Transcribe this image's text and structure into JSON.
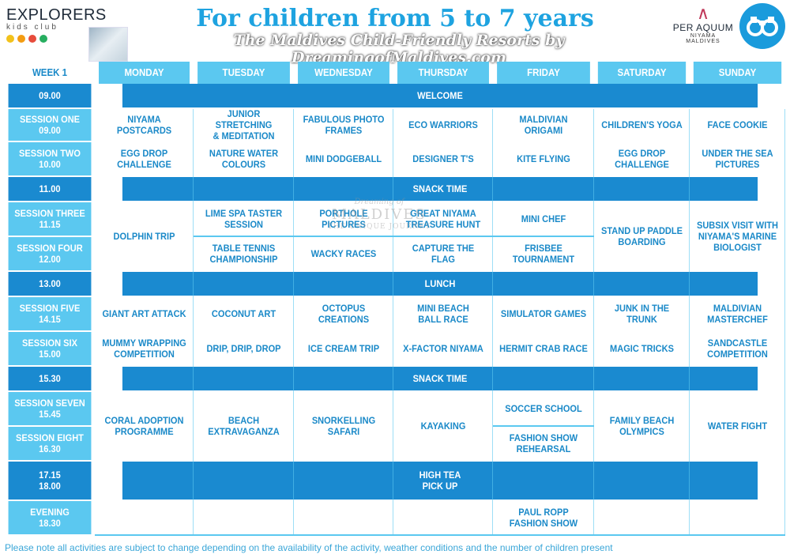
{
  "header": {
    "club_logo_title": "EXPLORERS",
    "club_logo_sub": "kids club",
    "title": "For children from 5 to 7 years",
    "subtitle": "The Maldives Child-Friendly Resorts by DreamingofMaldives.com",
    "brand_name": "PER AQUUM",
    "brand_sub": "NIYAMA",
    "brand_sub2": "MALDIVES"
  },
  "watermark": {
    "line1": "Dreaming of",
    "line2": "MALDIVES",
    "line3": "THE UNIQUE JOURNEY"
  },
  "colors": {
    "header_light": "#5bc8f0",
    "band_dark": "#1a8ad0",
    "activity_text": "#1a89c8",
    "title": "#1ea3e0"
  },
  "schedule": {
    "week_label": "WEEK 1",
    "days": [
      "MONDAY",
      "TUESDAY",
      "WEDNESDAY",
      "THURSDAY",
      "FRIDAY",
      "SATURDAY",
      "SUNDAY"
    ],
    "welcome": {
      "time": "09.00",
      "label": "WELCOME"
    },
    "snack1": {
      "time": "11.00",
      "label": "SNACK TIME"
    },
    "lunch": {
      "time": "13.00",
      "label": "LUNCH"
    },
    "snack2": {
      "time": "15.30",
      "label": "SNACK TIME"
    },
    "hightea": {
      "time": "17.15",
      "label": "HIGH TEA"
    },
    "pickup": {
      "time": "18.00",
      "label": "PICK UP"
    },
    "sessions": {
      "s1": "SESSION ONE\n09.00",
      "s2": "SESSION TWO\n10.00",
      "s3": "SESSION THREE\n11.15",
      "s4": "SESSION FOUR\n12.00",
      "s5": "SESSION FIVE\n14.15",
      "s6": "SESSION SIX\n15.00",
      "s7": "SESSION SEVEN\n15.45",
      "s8": "SESSION EIGHT\n16.30",
      "ev": "EVENING\n18.30"
    },
    "s1": [
      "NIYAMA POSTCARDS",
      "JUNIOR STRETCHING\n& MEDITATION",
      "FABULOUS PHOTO\nFRAMES",
      "ECO WARRIORS",
      "MALDIVIAN ORIGAMI",
      "CHILDREN'S YOGA",
      "FACE COOKIE"
    ],
    "s2": [
      "EGG DROP CHALLENGE",
      "NATURE WATER\nCOLOURS",
      "MINI DODGEBALL",
      "DESIGNER T'S",
      "KITE FLYING",
      "EGG DROP CHALLENGE",
      "UNDER THE SEA\nPICTURES"
    ],
    "b34": {
      "mon": "DOLPHIN TRIP",
      "tue3": "LIME SPA TASTER\nSESSION",
      "tue4": "TABLE TENNIS\nCHAMPIONSHIP",
      "wed3": "PORTHOLE PICTURES",
      "wed4": "WACKY RACES",
      "thu3": "GREAT NIYAMA\nTREASURE HUNT",
      "thu4": "CAPTURE THE FLAG",
      "fri3": "MINI CHEF",
      "fri4": "FRISBEE TOURNAMENT",
      "sat": "STAND UP PADDLE\nBOARDING",
      "sun": "SUBSIX VISIT WITH\nNIYAMA'S MARINE\nBIOLOGIST"
    },
    "s5": [
      "GIANT ART ATTACK",
      "COCONUT ART",
      "OCTOPUS CREATIONS",
      "MINI BEACH\nBALL RACE",
      "SIMULATOR GAMES",
      "JUNK IN THE TRUNK",
      "MALDIVIAN\nMASTERCHEF"
    ],
    "s6": [
      "MUMMY WRAPPING\nCOMPETITION",
      "DRIP, DRIP, DROP",
      "ICE CREAM TRIP",
      "X-FACTOR NIYAMA",
      "HERMIT CRAB RACE",
      "MAGIC TRICKS",
      "SANDCASTLE\nCOMPETITION"
    ],
    "b78": {
      "mon": "CORAL ADOPTION\nPROGRAMME",
      "tue": "BEACH\nEXTRAVAGANZA",
      "wed": "SNORKELLING SAFARI",
      "thu": "KAYAKING",
      "fri7": "SOCCER SCHOOL",
      "fri8": "FASHION SHOW\nREHEARSAL",
      "sat": "FAMILY BEACH\nOLYMPICS",
      "sun": "WATER FIGHT"
    },
    "evening_fri": "PAUL ROPP\nFASHION SHOW"
  },
  "footnote": "Please note all activities are subject to change depending on the availability of the activity, weather conditions and the number of children present"
}
